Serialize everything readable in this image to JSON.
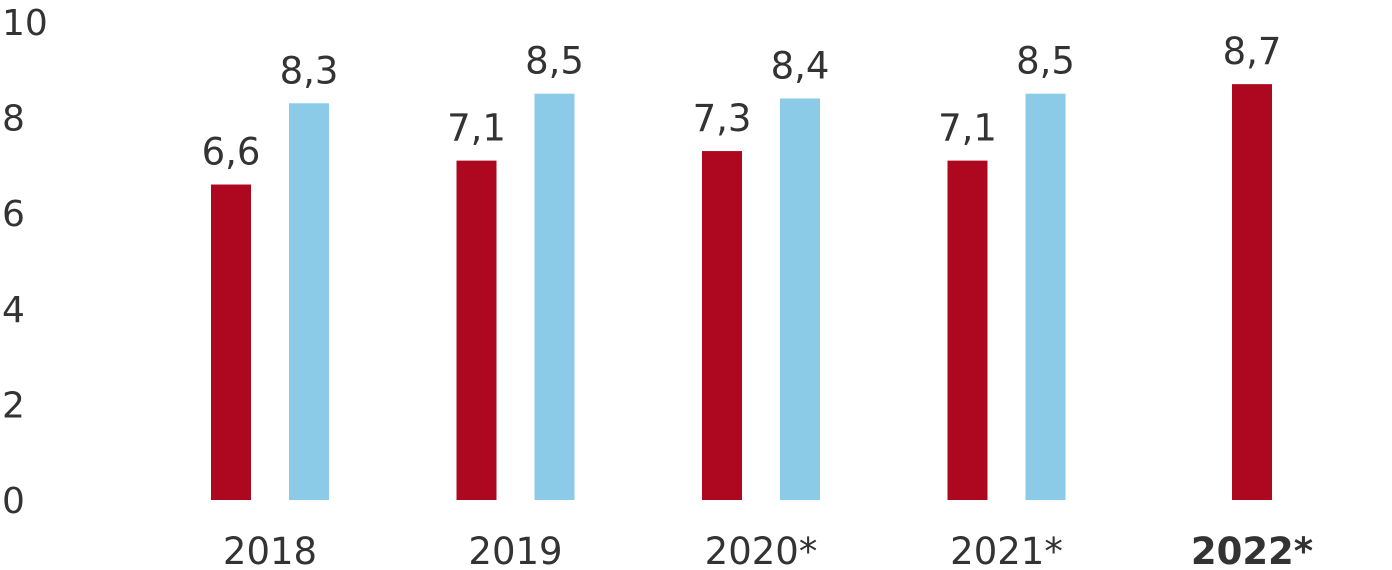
{
  "chart_data": {
    "type": "bar",
    "title": "",
    "xlabel": "",
    "ylabel": "",
    "ylim": [
      0,
      10
    ],
    "yticks": [
      0,
      2,
      4,
      6,
      8,
      10
    ],
    "ytick_labels": [
      "0",
      "2",
      "4",
      "6",
      "8",
      "10"
    ],
    "grid": false,
    "categories": [
      "2018",
      "2019",
      "2020*",
      "2021*",
      "2022*"
    ],
    "bold_categories": [
      "2022*"
    ],
    "series": [
      {
        "color": "#ad0820",
        "values": [
          6.6,
          7.1,
          7.3,
          7.1,
          8.7
        ],
        "labels": [
          "6,6",
          "7,1",
          "7,3",
          "7,1",
          "8,7"
        ]
      },
      {
        "color": "#8ccbe8",
        "values": [
          8.3,
          8.5,
          8.4,
          8.5,
          null
        ],
        "labels": [
          "8,3",
          "8,5",
          "8,4",
          "8,5",
          null
        ]
      }
    ]
  }
}
